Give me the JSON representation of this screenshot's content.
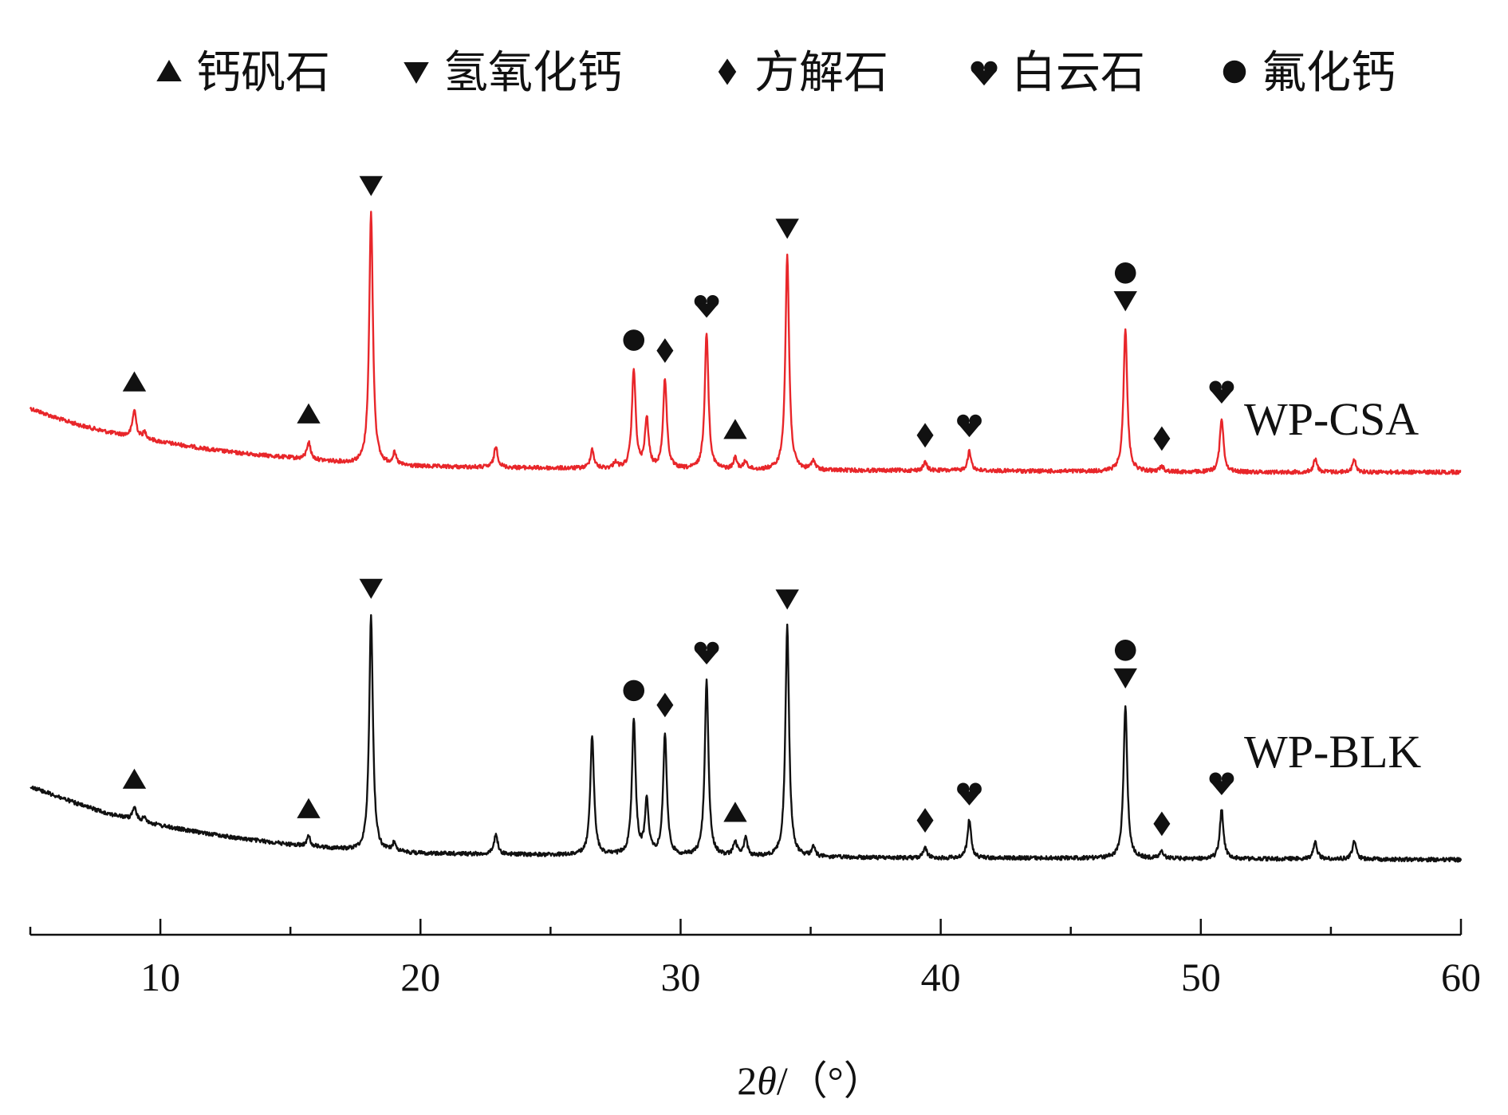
{
  "chart_data": {
    "type": "line",
    "title": "",
    "xlabel_parts": {
      "prefix": "2",
      "symbol": "θ",
      "suffix": "/（°）"
    },
    "ylabel": "",
    "xlim": [
      5,
      60
    ],
    "x_ticks": [
      10,
      20,
      30,
      40,
      50,
      60
    ],
    "x_minor_ticks": [
      5,
      15,
      25,
      35,
      45,
      55
    ],
    "grid": false,
    "y_axis_shown": false,
    "legend_position": "top",
    "legend": [
      {
        "marker": "triangle-up",
        "label": "钙矾石"
      },
      {
        "marker": "triangle-down",
        "label": "氢氧化钙"
      },
      {
        "marker": "diamond",
        "label": "方解石"
      },
      {
        "marker": "heart",
        "label": "白云石"
      },
      {
        "marker": "circle",
        "label": "氟化钙"
      }
    ],
    "series": [
      {
        "name": "WP-CSA",
        "color": "#e8262a",
        "baseline": [
          [
            5.0,
            128
          ],
          [
            6.0,
            116
          ],
          [
            7.0,
            106
          ],
          [
            8.0,
            98
          ],
          [
            9.0,
            92
          ],
          [
            10.0,
            86
          ],
          [
            11.0,
            81
          ],
          [
            12.0,
            76
          ],
          [
            13.0,
            72
          ],
          [
            14.0,
            69
          ],
          [
            15.0,
            66
          ],
          [
            16.0,
            63
          ],
          [
            17.0,
            60
          ],
          [
            18.0,
            57
          ],
          [
            20.0,
            55
          ],
          [
            25.0,
            53
          ],
          [
            30.0,
            51
          ],
          [
            35.0,
            50
          ],
          [
            40.0,
            50
          ],
          [
            45.0,
            49
          ],
          [
            50.0,
            48
          ],
          [
            55.0,
            48
          ],
          [
            60.0,
            48
          ]
        ],
        "peaks": [
          [
            9.0,
            34
          ],
          [
            9.4,
            8
          ],
          [
            15.7,
            22
          ],
          [
            18.1,
            317
          ],
          [
            19.0,
            14
          ],
          [
            22.9,
            26
          ],
          [
            26.6,
            24
          ],
          [
            27.5,
            8
          ],
          [
            28.2,
            125
          ],
          [
            28.7,
            62
          ],
          [
            29.4,
            113
          ],
          [
            31.0,
            172
          ],
          [
            32.1,
            14
          ],
          [
            32.5,
            10
          ],
          [
            34.1,
            270
          ],
          [
            35.1,
            12
          ],
          [
            39.4,
            10
          ],
          [
            41.1,
            24
          ],
          [
            47.1,
            181
          ],
          [
            48.5,
            7
          ],
          [
            50.8,
            68
          ],
          [
            54.4,
            16
          ],
          [
            55.9,
            15
          ]
        ],
        "markers": [
          [
            9.0,
            "triangle-up"
          ],
          [
            15.7,
            "triangle-up"
          ],
          [
            18.1,
            "triangle-down"
          ],
          [
            28.2,
            "circle"
          ],
          [
            29.4,
            "diamond"
          ],
          [
            31.0,
            "heart"
          ],
          [
            32.1,
            "triangle-up"
          ],
          [
            34.1,
            "triangle-down"
          ],
          [
            39.4,
            "diamond"
          ],
          [
            41.1,
            "heart"
          ],
          [
            47.1,
            "triangle-down"
          ],
          [
            47.1,
            "circle"
          ],
          [
            48.5,
            "diamond"
          ],
          [
            50.8,
            "heart"
          ]
        ]
      },
      {
        "name": "WP-BLK",
        "color": "#111111",
        "baseline": [
          [
            5.0,
            102
          ],
          [
            6.0,
            90
          ],
          [
            7.0,
            78
          ],
          [
            8.0,
            68
          ],
          [
            9.0,
            60
          ],
          [
            10.0,
            53
          ],
          [
            11.0,
            47
          ],
          [
            12.0,
            42
          ],
          [
            13.0,
            37
          ],
          [
            14.0,
            33
          ],
          [
            15.0,
            29
          ],
          [
            16.0,
            26
          ],
          [
            17.0,
            23
          ],
          [
            18.0,
            20
          ],
          [
            20.0,
            18
          ],
          [
            25.0,
            16
          ],
          [
            30.0,
            14
          ],
          [
            35.0,
            13
          ],
          [
            40.0,
            12
          ],
          [
            45.0,
            12
          ],
          [
            50.0,
            11
          ],
          [
            55.0,
            11
          ],
          [
            60.0,
            10
          ]
        ],
        "peaks": [
          [
            9.0,
            16
          ],
          [
            9.4,
            6
          ],
          [
            15.7,
            12
          ],
          [
            18.1,
            297
          ],
          [
            19.0,
            12
          ],
          [
            22.9,
            25
          ],
          [
            26.6,
            150
          ],
          [
            28.2,
            170
          ],
          [
            28.7,
            68
          ],
          [
            29.4,
            153
          ],
          [
            31.0,
            222
          ],
          [
            32.1,
            18
          ],
          [
            32.5,
            22
          ],
          [
            34.1,
            290
          ],
          [
            35.1,
            12
          ],
          [
            39.4,
            13
          ],
          [
            41.1,
            48
          ],
          [
            47.1,
            193
          ],
          [
            48.5,
            9
          ],
          [
            50.8,
            62
          ],
          [
            54.4,
            21
          ],
          [
            55.9,
            22
          ]
        ],
        "markers": [
          [
            9.0,
            "triangle-up"
          ],
          [
            15.7,
            "triangle-up"
          ],
          [
            18.1,
            "triangle-down"
          ],
          [
            28.2,
            "circle"
          ],
          [
            29.4,
            "diamond"
          ],
          [
            31.0,
            "heart"
          ],
          [
            32.1,
            "triangle-up"
          ],
          [
            34.1,
            "triangle-down"
          ],
          [
            39.4,
            "diamond"
          ],
          [
            41.1,
            "heart"
          ],
          [
            47.1,
            "triangle-down"
          ],
          [
            47.1,
            "circle"
          ],
          [
            48.5,
            "diamond"
          ],
          [
            50.8,
            "heart"
          ]
        ]
      }
    ]
  }
}
